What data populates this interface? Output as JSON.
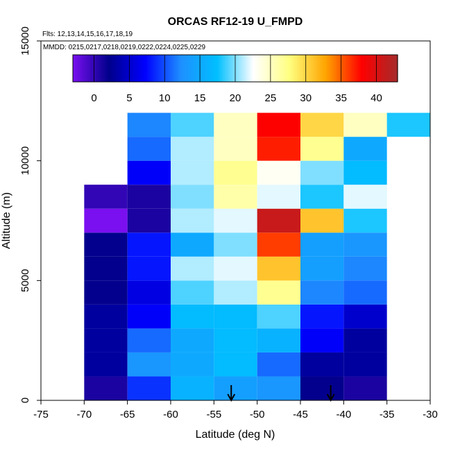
{
  "chart_data": {
    "type": "heatmap",
    "title": "ORCAS RF12-19 U_FMPD",
    "xlabel": "Latitude (deg N)",
    "ylabel": "Altitude (m)",
    "annotations": [
      "Flts: 12,13,14,15,16,17,18,19",
      "MMDD: 0215,0217,0218,0219,0222,0224,0225,0229"
    ],
    "xlim": [
      -75,
      -30
    ],
    "ylim": [
      0,
      15000
    ],
    "x_ticks": [
      -75,
      -70,
      -65,
      -60,
      -55,
      -50,
      -45,
      -40,
      -35,
      -30
    ],
    "y_ticks": [
      0,
      5000,
      10000,
      15000
    ],
    "colorbar": {
      "range": [
        -3,
        43
      ],
      "ticks": [
        0,
        5,
        10,
        15,
        20,
        25,
        30,
        35,
        40
      ],
      "colors": [
        "#7a0ff0",
        "#00008b",
        "#0000ff",
        "#1e90ff",
        "#00bfff",
        "#ffffff",
        "#ffff80",
        "#ffa500",
        "#ff0000",
        "#a52a2a"
      ]
    },
    "x_bins": [
      -70,
      -65,
      -60,
      -55,
      -50,
      -45,
      -40,
      -35
    ],
    "bin_width": 5,
    "y_bin_height": 1000,
    "cells": [
      {
        "x": -70,
        "values": [
          1,
          3,
          3,
          3,
          2,
          2,
          2,
          -3,
          0,
          null,
          null,
          null
        ]
      },
      {
        "x": -65,
        "values": [
          9,
          13,
          11,
          7,
          6,
          8,
          8,
          1,
          1,
          7,
          11,
          12
        ]
      },
      {
        "x": -60,
        "values": [
          16,
          15,
          15,
          17,
          19,
          21,
          15,
          21,
          20,
          21,
          21,
          19
        ]
      },
      {
        "x": -55,
        "values": [
          14,
          17,
          17,
          17,
          21,
          22,
          20,
          22,
          26,
          27,
          25,
          25
        ]
      },
      {
        "x": -50,
        "values": [
          13,
          11,
          16,
          19,
          27,
          31,
          36,
          41,
          22,
          23,
          37,
          38
        ]
      },
      {
        "x": -45,
        "values": [
          2,
          3,
          7,
          8,
          12,
          14,
          14,
          31,
          18,
          20,
          27,
          30
        ]
      },
      {
        "x": -40,
        "values": [
          1,
          3,
          3,
          5,
          11,
          12,
          13,
          18,
          22,
          17,
          15,
          25
        ]
      },
      {
        "x": -35,
        "values": [
          null,
          null,
          null,
          null,
          null,
          null,
          null,
          null,
          null,
          null,
          null,
          18
        ]
      }
    ],
    "arrows": [
      -53,
      -41.5
    ]
  }
}
